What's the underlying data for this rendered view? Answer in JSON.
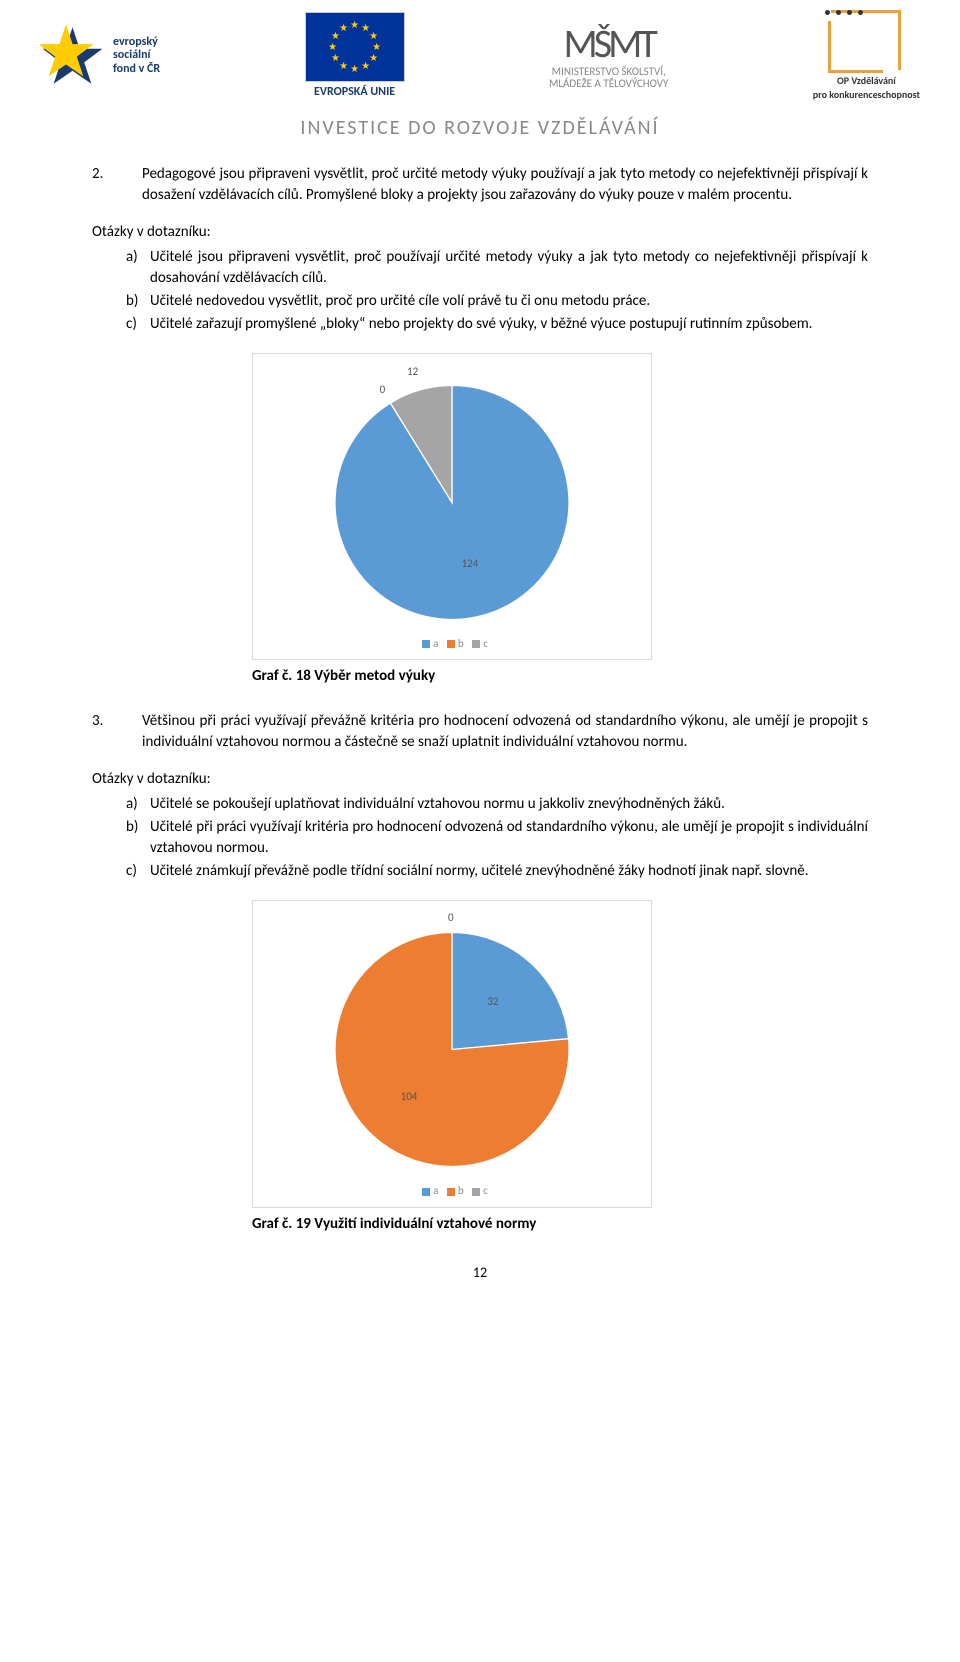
{
  "header": {
    "esf_lines": [
      "evropský",
      "sociální",
      "fond v ČR"
    ],
    "eu_label": "EVROPSKÁ UNIE",
    "msmt_line1": "MINISTERSTVO ŠKOLSTVÍ,",
    "msmt_line2": "MLÁDEŽE A TĚLOVÝCHOVY",
    "op_line1": "OP Vzdělávání",
    "op_line2": "pro konkurenceschopnost",
    "tagline": "INVESTICE DO ROZVOJE VZDĚLÁVÁNÍ"
  },
  "item2": {
    "num": "2.",
    "text": "Pedagogové jsou připraveni vysvětlit, proč určité metody výuky používají a jak tyto metody co nejefektivněji přispívají k dosažení vzdělávacích cílů. Promyšlené bloky a projekty jsou zařazovány do výuky pouze v malém procentu."
  },
  "q_label": "Otázky v dotazníku:",
  "q2_list": [
    {
      "m": "a)",
      "t": "Učitelé jsou připraveni vysvětlit, proč používají určité metody výuky a jak tyto metody co nejefektivněji přispívají k dosahování vzdělávacích cílů."
    },
    {
      "m": "b)",
      "t": "Učitelé nedovedou vysvětlit, proč pro určité cíle volí právě tu či onu metodu práce."
    },
    {
      "m": "c)",
      "t": "Učitelé zařazují promyšlené „bloky“ nebo projekty do své výuky, v běžné výuce postupují rutinním způsobem."
    }
  ],
  "chart1": {
    "type": "pie",
    "values": {
      "a": 124,
      "b": 0,
      "c": 12
    },
    "colors": {
      "a": "#5b9bd5",
      "b": "#ed7d31",
      "c": "#a5a5a5"
    },
    "bg": "#ffffff",
    "border": "#d9d9d9",
    "label_fontsize": 11,
    "label_color": "#555555",
    "start_angle_deg": 0,
    "legend_items": [
      "a",
      "b",
      "c"
    ]
  },
  "caption1": "Graf č. 18 Výběr metod výuky",
  "item3": {
    "num": "3.",
    "text": "Většinou při práci využívají převážně kritéria pro hodnocení odvozená od standardního výkonu, ale umějí je propojit s individuální vztahovou normou a částečně se snaží uplatnit individuální vztahovou normu."
  },
  "q3_list": [
    {
      "m": "a)",
      "t": "Učitelé se pokoušejí uplatňovat individuální vztahovou normu u jakkoliv znevýhodněných žáků."
    },
    {
      "m": "b)",
      "t": "Učitelé při práci využívají kritéria pro hodnocení odvozená od standardního výkonu, ale umějí je propojit s individuální vztahovou normou."
    },
    {
      "m": "c)",
      "t": "Učitelé známkují převážně podle třídní sociální normy, učitelé znevýhodněné žáky hodnotí jinak např. slovně."
    }
  ],
  "chart2": {
    "type": "pie",
    "values": {
      "a": 32,
      "b": 104,
      "c": 0
    },
    "colors": {
      "a": "#5b9bd5",
      "b": "#ed7d31",
      "c": "#a5a5a5"
    },
    "bg": "#ffffff",
    "border": "#d9d9d9",
    "label_fontsize": 11,
    "label_color": "#555555",
    "start_angle_deg": 0,
    "legend_items": [
      "a",
      "b",
      "c"
    ]
  },
  "caption2": "Graf č. 19 Využití individuální vztahové normy",
  "page_number": "12"
}
